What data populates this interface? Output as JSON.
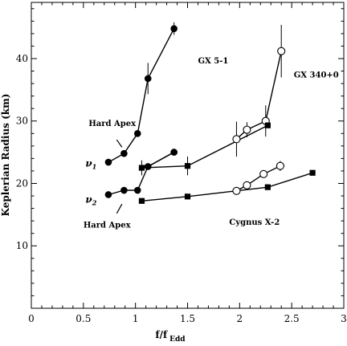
{
  "chart_data": {
    "type": "scatter",
    "xlabel": "f/f",
    "xlabel_sub": "Edd",
    "ylabel": "Keplerian Radius (km)",
    "xlim": [
      0,
      3
    ],
    "ylim": [
      0,
      49
    ],
    "x_ticks": [
      0,
      0.5,
      1,
      1.5,
      2,
      2.5,
      3
    ],
    "x_tick_labels": [
      "0",
      "0.5",
      "1",
      "1.5",
      "2",
      "2.5",
      "3"
    ],
    "y_ticks": [
      10,
      20,
      30,
      40
    ],
    "y_tick_labels": [
      "10",
      "20",
      "30",
      "40"
    ],
    "grid": false,
    "series": [
      {
        "source": "GX 5-1",
        "marker": "filled-circle",
        "mode": "lines",
        "points": [
          {
            "x": 0.74,
            "y": 23.4
          },
          {
            "x": 0.89,
            "y": 24.8
          },
          {
            "x": 1.02,
            "y": 28.0
          },
          {
            "x": 1.12,
            "y": 36.8,
            "err": 2.5
          },
          {
            "x": 1.37,
            "y": 44.8,
            "err": 1.0
          }
        ]
      },
      {
        "source": "GX 5-1",
        "marker": "filled-circle",
        "mode": "lines",
        "points": [
          {
            "x": 1.12,
            "y": 22.7
          },
          {
            "x": 1.37,
            "y": 25.0
          }
        ]
      },
      {
        "source": "GX 5-1",
        "marker": "filled-circle",
        "mode": "lines",
        "points": [
          {
            "x": 0.74,
            "y": 18.2
          },
          {
            "x": 0.89,
            "y": 18.9
          },
          {
            "x": 1.02,
            "y": 18.9
          },
          {
            "x": 1.12,
            "y": 22.7
          },
          {
            "x": 1.37,
            "y": 25.0
          }
        ]
      },
      {
        "source": "GX 340+0",
        "marker": "open-circle",
        "mode": "lines",
        "points": [
          {
            "x": 1.97,
            "y": 27.1,
            "err": 2.8
          },
          {
            "x": 2.07,
            "y": 28.6,
            "err": 1.2
          },
          {
            "x": 2.25,
            "y": 30.0,
            "err": 2.5
          },
          {
            "x": 2.4,
            "y": 41.2,
            "err": 4.2
          }
        ]
      },
      {
        "source": "GX 340+0",
        "marker": "open-circle",
        "mode": "lines",
        "points": [
          {
            "x": 1.97,
            "y": 18.8
          },
          {
            "x": 2.07,
            "y": 19.7
          },
          {
            "x": 2.23,
            "y": 21.5,
            "err": 0.6
          },
          {
            "x": 2.39,
            "y": 22.8,
            "err": 0.8
          }
        ]
      },
      {
        "source": "Cygnus X-2",
        "marker": "filled-square",
        "mode": "lines",
        "points": [
          {
            "x": 1.06,
            "y": 22.5,
            "err": 1.2
          },
          {
            "x": 1.5,
            "y": 22.8,
            "err": 1.5
          },
          {
            "x": 2.27,
            "y": 29.3
          }
        ]
      },
      {
        "source": "Cygnus X-2",
        "marker": "filled-square",
        "mode": "lines",
        "points": [
          {
            "x": 1.06,
            "y": 17.2
          },
          {
            "x": 1.5,
            "y": 17.9
          },
          {
            "x": 2.27,
            "y": 19.4
          },
          {
            "x": 2.7,
            "y": 21.7
          }
        ]
      }
    ],
    "annotations": [
      {
        "id": "gx51",
        "text": "GX 5-1",
        "x": 1.6,
        "y": 39.2,
        "style": "annot"
      },
      {
        "id": "gx340",
        "text": "GX 340+0",
        "x": 2.52,
        "y": 37.0,
        "style": "annot"
      },
      {
        "id": "cyg",
        "text": "Cygnus X-2",
        "x": 1.9,
        "y": 13.4,
        "style": "annot"
      },
      {
        "id": "hardapex1",
        "text": "Hard Apex",
        "x": 0.55,
        "y": 29.2,
        "style": "annot"
      },
      {
        "id": "hardapex2",
        "text": "Hard Apex",
        "x": 0.5,
        "y": 12.9,
        "style": "annot"
      },
      {
        "id": "nu1",
        "text": "ν",
        "sub": "1",
        "x": 0.52,
        "y": 22.7,
        "style": "annot-greek"
      },
      {
        "id": "nu2",
        "text": "ν",
        "sub": "2",
        "x": 0.52,
        "y": 16.9,
        "style": "annot-greek"
      }
    ],
    "pointer_lines": [
      {
        "x1": 0.82,
        "y1": 27.0,
        "x2": 0.87,
        "y2": 25.8
      },
      {
        "x1": 0.82,
        "y1": 15.2,
        "x2": 0.87,
        "y2": 16.7
      }
    ]
  }
}
